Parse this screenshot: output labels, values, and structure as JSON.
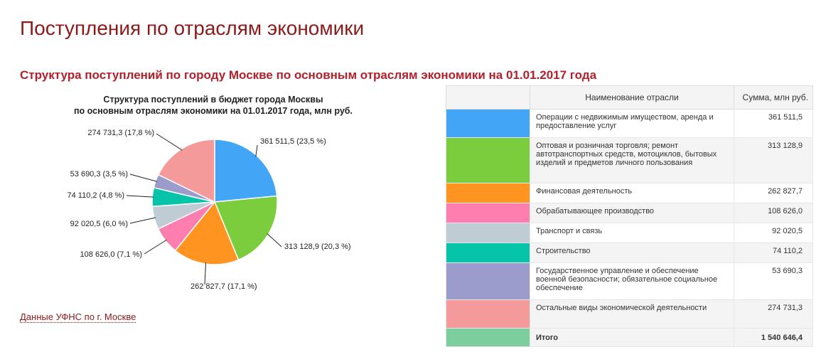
{
  "page": {
    "title": "Поступления по отраслям экономики",
    "section_title": "Структура поступлений по городу Москве по основным отраслям экономики на 01.01.2017 года",
    "source_link": "Данные УФНС по г. Москве"
  },
  "chart_data": {
    "type": "pie",
    "title_line1": "Структура поступлений в бюджет города Москвы",
    "title_line2": "по основным отраслям экономики на 01.01.2017 года, млн руб.",
    "start_angle": "12 o'clock",
    "direction": "clockwise",
    "slices": [
      {
        "name": "Операции с недвижимым имуществом, аренда и предоставление услуг",
        "value": 361511.5,
        "label": "361 511,5 (23,5 %)",
        "color": "#42a5f5"
      },
      {
        "name": "Оптовая и розничная торговля; ремонт автотранспортных средств, мотоциклов, бытовых изделий и предметов личного пользования",
        "value": 313128.9,
        "label": "313 128,9 (20,3 %)",
        "color": "#7ccd3d"
      },
      {
        "name": "Финансовая деятельность",
        "value": 262827.7,
        "label": "262 827,7 (17,1 %)",
        "color": "#ff9520"
      },
      {
        "name": "Обрабатывающее производство",
        "value": 108626.0,
        "label": "108 626,0 (7,1 %)",
        "color": "#ff7eb0"
      },
      {
        "name": "Транспорт и связь",
        "value": 92020.5,
        "label": "92 020,5 (6,0 %)",
        "color": "#bfccd4"
      },
      {
        "name": "Строительство",
        "value": 74110.2,
        "label": "74 110,2 (4,8 %)",
        "color": "#05c4aa"
      },
      {
        "name": "Государственное управление и обеспечение военной безопасности; обязательное социальное обеспечение",
        "value": 53690.3,
        "label": "53 690,3 (3,5 %)",
        "color": "#9b9bcc"
      },
      {
        "name": "Остальные виды экономической деятельности",
        "value": 274731.3,
        "label": "274 731,3 (17,8 %)",
        "color": "#f49a9a"
      }
    ]
  },
  "table": {
    "header_name": "Наименование отрасли",
    "header_sum": "Сумма, млн руб.",
    "rows": [
      {
        "name": "Операции с недвижимым имуществом, аренда и предоставление услуг",
        "sum": "361 511,5",
        "color": "#42a5f5"
      },
      {
        "name": "Оптовая и розничная торговля; ремонт автотранспортных средств, мотоциклов, бытовых изделий и предметов личного пользования",
        "sum": "313 128,9",
        "color": "#7ccd3d"
      },
      {
        "name": "Финансовая деятельность",
        "sum": "262 827,7",
        "color": "#ff9520"
      },
      {
        "name": "Обрабатывающее производство",
        "sum": "108 626,0",
        "color": "#ff7eb0"
      },
      {
        "name": "Транспорт и связь",
        "sum": "92 020,5",
        "color": "#bfccd4"
      },
      {
        "name": "Строительство",
        "sum": "74 110,2",
        "color": "#05c4aa"
      },
      {
        "name": "Государственное управление и обеспечение военной безопасности; обязательное социальное обеспечение",
        "sum": "53 690,3",
        "color": "#9b9bcc"
      },
      {
        "name": "Остальные виды экономической деятельности",
        "sum": "274 731,3",
        "color": "#f49a9a"
      }
    ],
    "total": {
      "name": "Итого",
      "sum": "1 540 646,4",
      "color": "#7ccf9c"
    }
  },
  "colors": {
    "brand": "#8b1a1a",
    "accent": "#b3202b"
  }
}
